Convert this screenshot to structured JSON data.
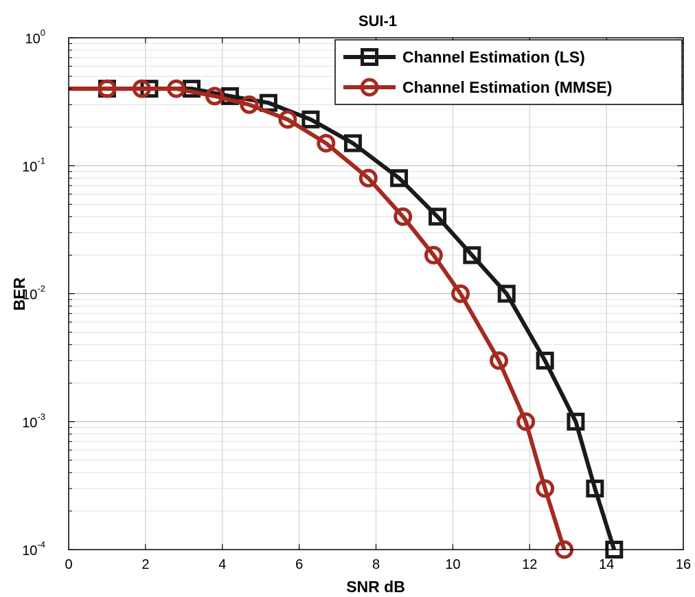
{
  "chart_data": {
    "type": "line",
    "title": "SUI-1",
    "xlabel": "SNR dB",
    "ylabel": "BER",
    "xlim": [
      0,
      16
    ],
    "ylim": [
      0.0001,
      1
    ],
    "yscale": "log",
    "grid": true,
    "legend_position": "top-right",
    "x_ticks": [
      "0",
      "2",
      "4",
      "6",
      "8",
      "10",
      "12",
      "14",
      "16"
    ],
    "y_ticks": [
      {
        "base": "10",
        "exp": "-4",
        "value": 0.0001
      },
      {
        "base": "10",
        "exp": "-3",
        "value": 0.001
      },
      {
        "base": "10",
        "exp": "-2",
        "value": 0.01
      },
      {
        "base": "10",
        "exp": "-1",
        "value": 0.1
      },
      {
        "base": "10",
        "exp": "0",
        "value": 1
      }
    ],
    "series": [
      {
        "name": "Channel Estimation (LS)",
        "color": "#1a1a1a",
        "marker": "square",
        "x": [
          0,
          1,
          2.1,
          3.2,
          4.2,
          5.2,
          6.3,
          7.4,
          8.6,
          9.6,
          10.5,
          11.4,
          12.4,
          13.2,
          13.7,
          14.2
        ],
        "y": [
          0.4,
          0.4,
          0.4,
          0.4,
          0.35,
          0.31,
          0.23,
          0.15,
          0.08,
          0.04,
          0.02,
          0.01,
          0.003,
          0.001,
          0.0003,
          0.0001
        ]
      },
      {
        "name": "Channel Estimation (MMSE)",
        "color": "#a52a1f",
        "marker": "circle",
        "x": [
          0,
          1,
          1.9,
          2.8,
          3.8,
          4.7,
          5.7,
          6.7,
          7.8,
          8.7,
          9.5,
          10.2,
          11.2,
          11.9,
          12.4,
          12.9
        ],
        "y": [
          0.4,
          0.4,
          0.4,
          0.4,
          0.35,
          0.3,
          0.23,
          0.15,
          0.08,
          0.04,
          0.02,
          0.01,
          0.003,
          0.001,
          0.0003,
          0.0001
        ]
      }
    ]
  }
}
